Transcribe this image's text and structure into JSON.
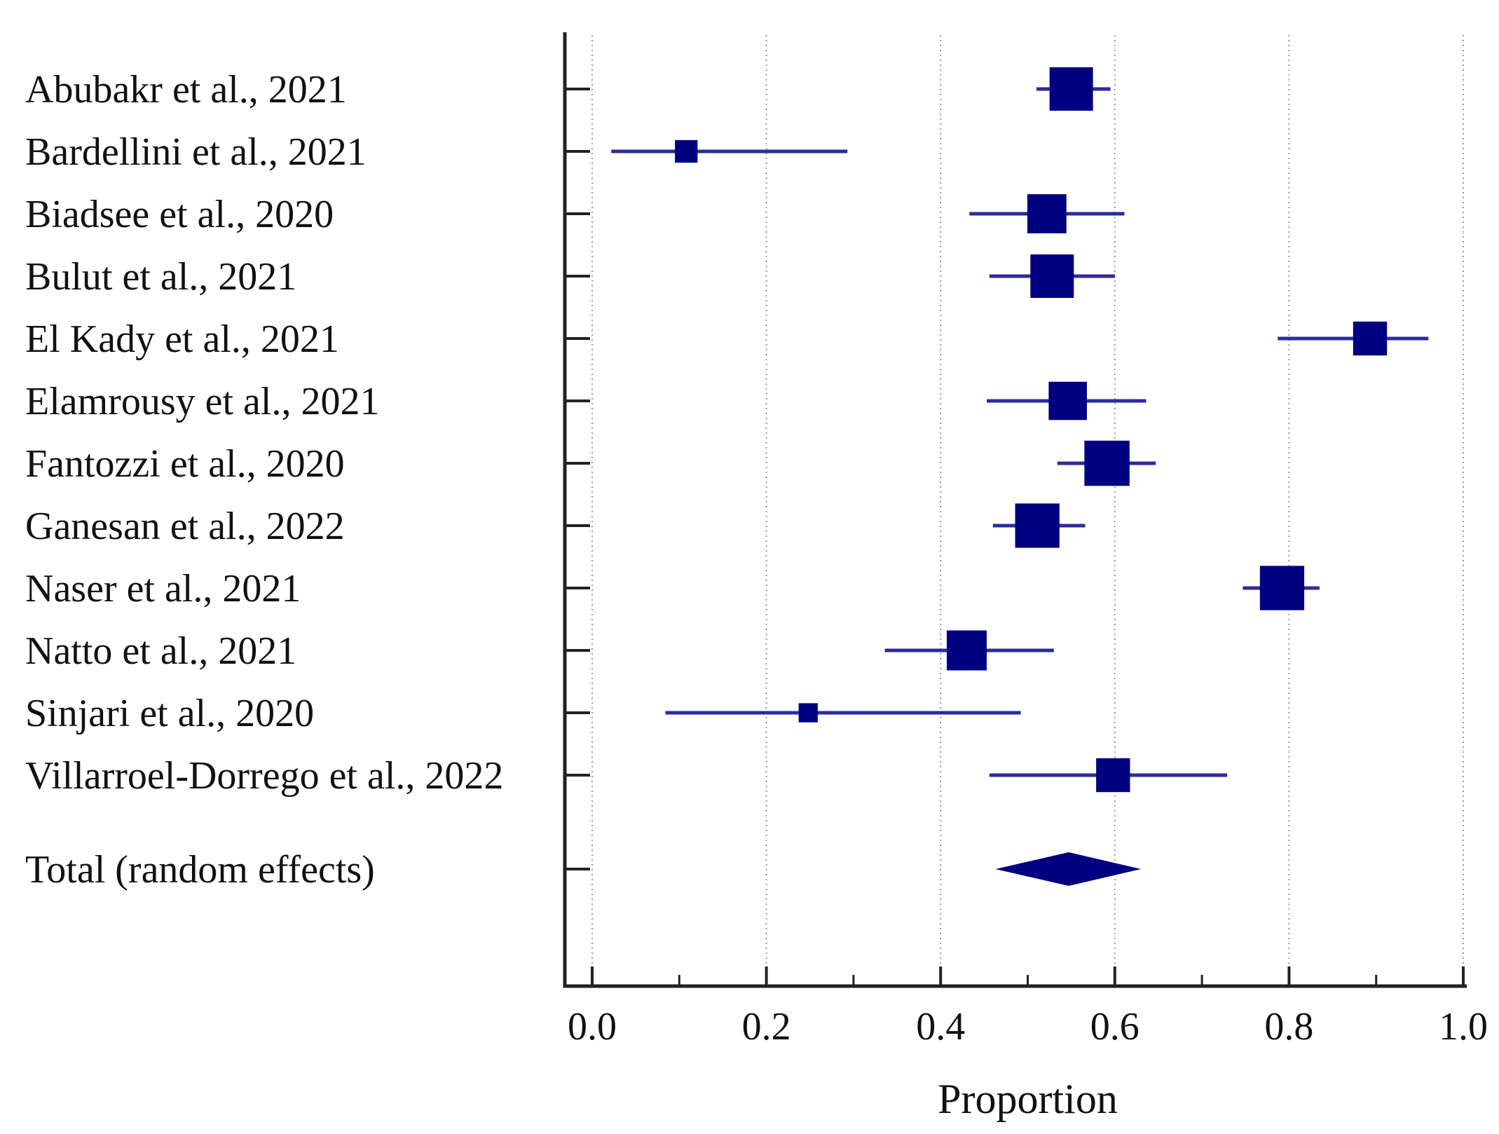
{
  "chart_data": {
    "type": "forest",
    "xlabel": "Proportion",
    "xlim": [
      0.0,
      1.0
    ],
    "xticks": [
      0.0,
      0.2,
      0.4,
      0.6,
      0.8,
      1.0
    ],
    "xtick_labels": [
      "0.0",
      "0.2",
      "0.4",
      "0.6",
      "0.8",
      "1.0"
    ],
    "minor_xticks": [
      0.1,
      0.3,
      0.5,
      0.7,
      0.9
    ],
    "grid": "vertical dotted",
    "colors": {
      "marker": "#000080",
      "ci_line": "#2b2b9c",
      "axis": "#222222",
      "grid": "#9a9a9a"
    },
    "studies": [
      {
        "label": "Abubakr et al., 2021",
        "estimate": 0.55,
        "ci_low": 0.51,
        "ci_high": 0.595,
        "weight": 1.0
      },
      {
        "label": "Bardellini et al., 2021",
        "estimate": 0.108,
        "ci_low": 0.022,
        "ci_high": 0.293,
        "weight": 0.52
      },
      {
        "label": "Biadsee et al., 2020",
        "estimate": 0.522,
        "ci_low": 0.433,
        "ci_high": 0.611,
        "weight": 0.9
      },
      {
        "label": "Bulut et al., 2021",
        "estimate": 0.528,
        "ci_low": 0.456,
        "ci_high": 0.6,
        "weight": 1.0
      },
      {
        "label": "El Kady et al., 2021",
        "estimate": 0.893,
        "ci_low": 0.787,
        "ci_high": 0.96,
        "weight": 0.78
      },
      {
        "label": "Elamrousy et al., 2021",
        "estimate": 0.546,
        "ci_low": 0.453,
        "ci_high": 0.636,
        "weight": 0.88
      },
      {
        "label": "Fantozzi et al., 2020",
        "estimate": 0.591,
        "ci_low": 0.534,
        "ci_high": 0.647,
        "weight": 1.04
      },
      {
        "label": "Ganesan et al., 2022",
        "estimate": 0.511,
        "ci_low": 0.46,
        "ci_high": 0.566,
        "weight": 1.02
      },
      {
        "label": "Naser et al., 2021",
        "estimate": 0.792,
        "ci_low": 0.747,
        "ci_high": 0.835,
        "weight": 1.02
      },
      {
        "label": "Natto et al., 2021",
        "estimate": 0.43,
        "ci_low": 0.336,
        "ci_high": 0.53,
        "weight": 0.92
      },
      {
        "label": "Sinjari et al., 2020",
        "estimate": 0.248,
        "ci_low": 0.084,
        "ci_high": 0.492,
        "weight": 0.44
      },
      {
        "label": "Villarroel-Dorrego et al., 2022",
        "estimate": 0.598,
        "ci_low": 0.456,
        "ci_high": 0.729,
        "weight": 0.78
      }
    ],
    "pooled": {
      "label": "Total (random effects)",
      "estimate": 0.547,
      "ci_low": 0.463,
      "ci_high": 0.63
    }
  }
}
